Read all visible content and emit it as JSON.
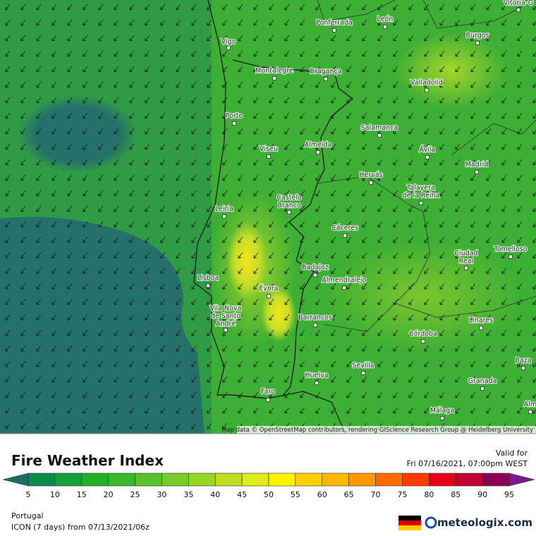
{
  "map": {
    "attribution": "Map data © OpenStreetMap contributors, rendering GIScience Research Group @ Heidelberg University",
    "cities": [
      [
        "Vigo"
      ],
      [
        "Ponferrada"
      ],
      [
        "León"
      ],
      [
        "Burgos"
      ],
      [
        "Vitoria-G"
      ],
      [
        "Montalegre"
      ],
      [
        "Bragança"
      ],
      [
        "Valladolid"
      ],
      [
        "Porto"
      ],
      [
        "Salamanca"
      ],
      [
        "Viseu"
      ],
      [
        "Almeida"
      ],
      [
        "Ávila"
      ],
      [
        "Madrid"
      ],
      [
        "Hervás"
      ],
      [
        "Talavera",
        "de la Reina"
      ],
      [
        "Castelo",
        "Branco"
      ],
      [
        "Leiria"
      ],
      [
        "Cáceres"
      ],
      [
        "Tomelloso"
      ],
      [
        "Ciudad",
        "Real"
      ],
      [
        "Badajoz"
      ],
      [
        "Almendralejo"
      ],
      [
        "Lisboa"
      ],
      [
        "Évora"
      ],
      [
        "Vila Nova",
        "de Santo",
        "André"
      ],
      [
        "Barrancos"
      ],
      [
        "Linares"
      ],
      [
        "Córdoba"
      ],
      [
        "Baza"
      ],
      [
        "Sevilla"
      ],
      [
        "Granada"
      ],
      [
        "Huelva"
      ],
      [
        "Faro"
      ],
      [
        "Málaga"
      ],
      [
        "Alm"
      ]
    ]
  },
  "legend": {
    "title": "Fire Weather Index",
    "valid_label": "Valid for",
    "valid_time": "Fri 07/16/2021, 07:00pm WEST",
    "ticks": [
      5,
      10,
      15,
      20,
      25,
      30,
      35,
      40,
      45,
      50,
      55,
      60,
      65,
      70,
      75,
      80,
      85,
      90,
      95
    ],
    "region": "Portugal",
    "model": "ICON (7 days) from 07/13/2021/06z",
    "brand": "meteologix.com"
  }
}
